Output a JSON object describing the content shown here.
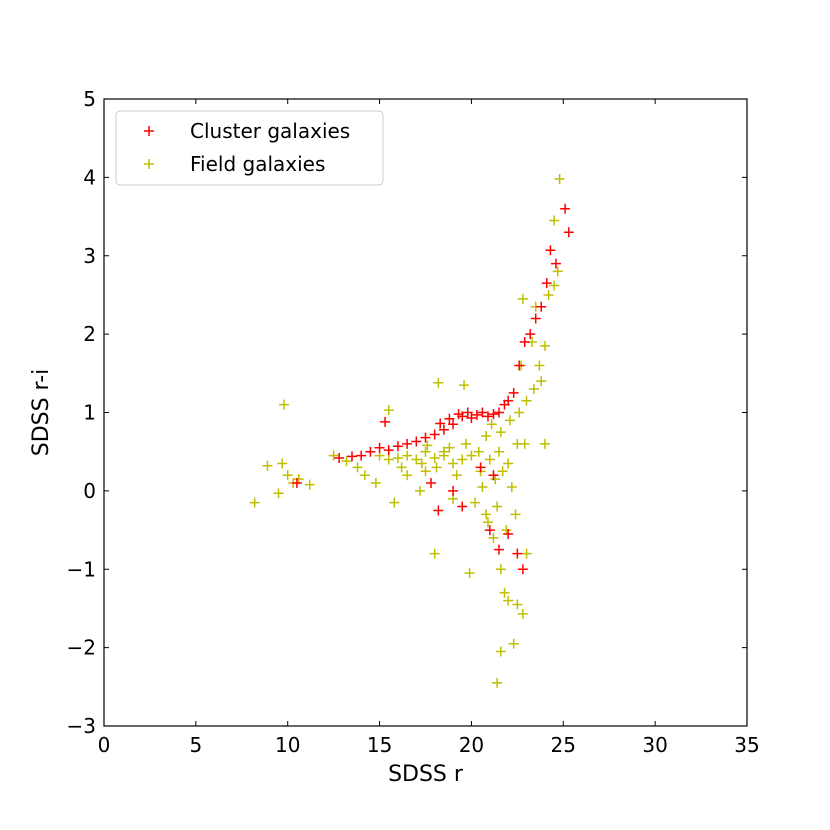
{
  "chart_data": {
    "type": "scatter",
    "xlabel": "SDSS r",
    "ylabel": "SDSS r-i",
    "xlim": [
      0,
      35
    ],
    "ylim": [
      -3,
      5
    ],
    "xticks": [
      0,
      5,
      10,
      15,
      20,
      25,
      30,
      35
    ],
    "yticks": [
      -3,
      -2,
      -1,
      0,
      1,
      2,
      3,
      4,
      5
    ],
    "xtick_labels": [
      "0",
      "5",
      "10",
      "15",
      "20",
      "25",
      "30",
      "35"
    ],
    "ytick_labels": [
      "−3",
      "−2",
      "−1",
      "0",
      "1",
      "2",
      "3",
      "4",
      "5"
    ],
    "marker": "+",
    "legend_position": "upper-left",
    "grid": false,
    "series": [
      {
        "name": "Cluster galaxies",
        "color": "#ff0000",
        "points": [
          [
            10.5,
            0.1
          ],
          [
            12.8,
            0.42
          ],
          [
            13.5,
            0.44
          ],
          [
            14.0,
            0.45
          ],
          [
            14.5,
            0.5
          ],
          [
            15.0,
            0.55
          ],
          [
            15.3,
            0.88
          ],
          [
            15.5,
            0.52
          ],
          [
            16.0,
            0.57
          ],
          [
            16.5,
            0.6
          ],
          [
            17.0,
            0.63
          ],
          [
            17.5,
            0.68
          ],
          [
            18.0,
            0.72
          ],
          [
            18.3,
            0.86
          ],
          [
            18.5,
            0.78
          ],
          [
            18.8,
            0.92
          ],
          [
            19.0,
            0.85
          ],
          [
            19.3,
            0.98
          ],
          [
            19.5,
            0.95
          ],
          [
            19.8,
            1.0
          ],
          [
            20.0,
            0.93
          ],
          [
            20.3,
            0.97
          ],
          [
            20.6,
            1.0
          ],
          [
            20.9,
            0.95
          ],
          [
            21.2,
            0.98
          ],
          [
            21.5,
            1.0
          ],
          [
            21.8,
            1.1
          ],
          [
            22.0,
            1.15
          ],
          [
            22.3,
            1.25
          ],
          [
            22.6,
            1.6
          ],
          [
            22.9,
            1.9
          ],
          [
            23.2,
            2.0
          ],
          [
            23.5,
            2.2
          ],
          [
            23.8,
            2.35
          ],
          [
            24.1,
            2.65
          ],
          [
            24.3,
            3.07
          ],
          [
            24.6,
            2.9
          ],
          [
            25.1,
            3.6
          ],
          [
            25.3,
            3.3
          ],
          [
            18.2,
            -0.25
          ],
          [
            19.5,
            -0.2
          ],
          [
            21.0,
            -0.5
          ],
          [
            21.5,
            -0.75
          ],
          [
            22.0,
            -0.55
          ],
          [
            22.5,
            -0.8
          ],
          [
            22.8,
            -1.0
          ],
          [
            21.2,
            0.2
          ],
          [
            20.5,
            0.3
          ],
          [
            17.8,
            0.1
          ],
          [
            19.0,
            0.0
          ]
        ]
      },
      {
        "name": "Field galaxies",
        "color": "#bfbf00",
        "points": [
          [
            8.2,
            -0.15
          ],
          [
            8.9,
            0.32
          ],
          [
            9.5,
            -0.03
          ],
          [
            9.7,
            0.35
          ],
          [
            9.8,
            1.1
          ],
          [
            10.0,
            0.2
          ],
          [
            10.3,
            0.1
          ],
          [
            10.6,
            0.15
          ],
          [
            11.2,
            0.08
          ],
          [
            12.5,
            0.45
          ],
          [
            13.2,
            0.38
          ],
          [
            13.8,
            0.3
          ],
          [
            14.2,
            0.2
          ],
          [
            14.8,
            0.1
          ],
          [
            15.5,
            1.03
          ],
          [
            15.8,
            -0.15
          ],
          [
            16.5,
            0.2
          ],
          [
            17.2,
            0.0
          ],
          [
            17.5,
            0.25
          ],
          [
            18.0,
            -0.8
          ],
          [
            18.2,
            1.38
          ],
          [
            18.5,
            0.5
          ],
          [
            19.0,
            -0.1
          ],
          [
            19.6,
            1.35
          ],
          [
            19.9,
            -1.05
          ],
          [
            20.2,
            -0.15
          ],
          [
            20.4,
            0.5
          ],
          [
            20.8,
            -0.3
          ],
          [
            21.2,
            -0.6
          ],
          [
            21.6,
            -1.0
          ],
          [
            21.8,
            -1.3
          ],
          [
            21.6,
            -2.05
          ],
          [
            21.4,
            -2.45
          ],
          [
            22.0,
            -1.4
          ],
          [
            22.3,
            -1.95
          ],
          [
            22.5,
            -1.45
          ],
          [
            22.8,
            -1.57
          ],
          [
            23.0,
            -0.8
          ],
          [
            22.7,
            1.6
          ],
          [
            22.8,
            2.45
          ],
          [
            23.3,
            1.9
          ],
          [
            23.5,
            2.35
          ],
          [
            23.8,
            1.4
          ],
          [
            24.0,
            0.6
          ],
          [
            24.0,
            1.85
          ],
          [
            24.2,
            2.5
          ],
          [
            24.5,
            2.62
          ],
          [
            24.7,
            2.8
          ],
          [
            24.8,
            3.98
          ],
          [
            24.5,
            3.45
          ],
          [
            15.0,
            0.45
          ],
          [
            15.5,
            0.4
          ],
          [
            16.0,
            0.42
          ],
          [
            16.5,
            0.45
          ],
          [
            17.0,
            0.4
          ],
          [
            17.5,
            0.5
          ],
          [
            18.0,
            0.42
          ],
          [
            18.5,
            0.45
          ],
          [
            19.0,
            0.35
          ],
          [
            19.5,
            0.4
          ],
          [
            20.0,
            0.45
          ],
          [
            20.5,
            0.25
          ],
          [
            21.0,
            0.4
          ],
          [
            21.5,
            0.5
          ],
          [
            22.0,
            0.35
          ],
          [
            22.5,
            0.6
          ],
          [
            16.2,
            0.3
          ],
          [
            17.3,
            0.35
          ],
          [
            18.8,
            0.55
          ],
          [
            19.7,
            0.6
          ],
          [
            20.8,
            0.7
          ],
          [
            21.3,
            0.15
          ],
          [
            21.7,
            0.25
          ],
          [
            22.2,
            0.05
          ],
          [
            22.4,
            -0.3
          ],
          [
            21.9,
            -0.5
          ],
          [
            20.6,
            0.05
          ],
          [
            19.2,
            0.2
          ],
          [
            18.1,
            0.3
          ],
          [
            17.6,
            0.58
          ],
          [
            21.1,
            0.85
          ],
          [
            21.6,
            0.75
          ],
          [
            22.1,
            0.9
          ],
          [
            22.6,
            1.0
          ],
          [
            23.0,
            1.15
          ],
          [
            23.4,
            1.3
          ],
          [
            23.7,
            1.6
          ],
          [
            22.9,
            0.6
          ],
          [
            21.4,
            -0.2
          ],
          [
            20.9,
            -0.4
          ]
        ]
      }
    ]
  }
}
